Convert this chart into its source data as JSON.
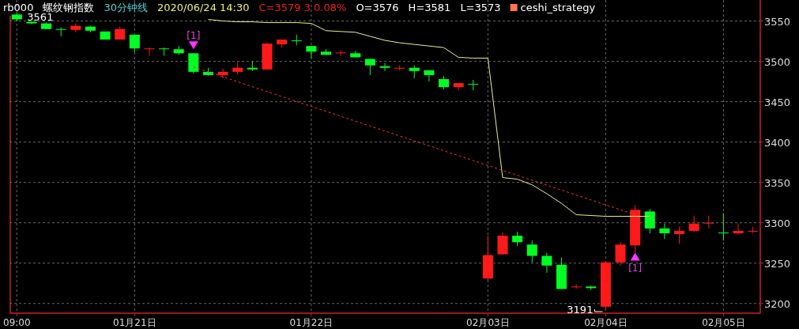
{
  "chart_data": {
    "type": "candlestick",
    "title": "rb000",
    "subtitle": "螺纹钢指数",
    "categories": [
      "09:00",
      null,
      null,
      null,
      null,
      null,
      null,
      null,
      "01月21日",
      null,
      null,
      null,
      null,
      null,
      null,
      null,
      null,
      null,
      null,
      null,
      "01月22日",
      null,
      null,
      null,
      null,
      null,
      null,
      null,
      null,
      null,
      null,
      null,
      "02月03日",
      null,
      null,
      null,
      null,
      null,
      null,
      null,
      "02月04日",
      null,
      null,
      null,
      null,
      null,
      null,
      null,
      "02月05日",
      null,
      null
    ],
    "ohlc": [
      [
        3558,
        3561,
        3550,
        3552
      ],
      [
        3549,
        3550,
        3546,
        3547
      ],
      [
        3547,
        3548,
        3540,
        3540
      ],
      [
        3540,
        3542,
        3531,
        3540
      ],
      [
        3539,
        3547,
        3536,
        3544
      ],
      [
        3543,
        3544,
        3536,
        3538
      ],
      [
        3537,
        3537,
        3527,
        3527
      ],
      [
        3527,
        3543,
        3527,
        3540
      ],
      [
        3533,
        3533,
        3511,
        3516
      ],
      [
        3515,
        3517,
        3507,
        3516
      ],
      [
        3516,
        3517,
        3507,
        3516
      ],
      [
        3515,
        3519,
        3508,
        3510
      ],
      [
        3510,
        3510,
        3485,
        3487
      ],
      [
        3487,
        3492,
        3482,
        3483
      ],
      [
        3483,
        3491,
        3479,
        3487
      ],
      [
        3487,
        3499,
        3484,
        3492
      ],
      [
        3492,
        3500,
        3488,
        3490
      ],
      [
        3490,
        3523,
        3490,
        3522
      ],
      [
        3521,
        3527,
        3517,
        3527
      ],
      [
        3526,
        3533,
        3520,
        3525
      ],
      [
        3519,
        3519,
        3504,
        3512
      ],
      [
        3512,
        3515,
        3508,
        3508
      ],
      [
        3510,
        3514,
        3507,
        3511
      ],
      [
        3510,
        3513,
        3505,
        3505
      ],
      [
        3503,
        3503,
        3483,
        3495
      ],
      [
        3494,
        3498,
        3488,
        3492
      ],
      [
        3491,
        3495,
        3489,
        3492
      ],
      [
        3492,
        3495,
        3479,
        3488
      ],
      [
        3489,
        3489,
        3475,
        3483
      ],
      [
        3478,
        3482,
        3465,
        3468
      ],
      [
        3468,
        3473,
        3464,
        3473
      ],
      [
        3472,
        3477,
        3464,
        3472
      ],
      [
        3231,
        3284,
        3229,
        3260
      ],
      [
        3261,
        3288,
        3260,
        3284
      ],
      [
        3284,
        3289,
        3271,
        3276
      ],
      [
        3273,
        3278,
        3251,
        3259
      ],
      [
        3259,
        3263,
        3238,
        3247
      ],
      [
        3248,
        3257,
        3218,
        3218
      ],
      [
        3220,
        3224,
        3218,
        3221
      ],
      [
        3221,
        3222,
        3217,
        3219
      ],
      [
        3196,
        3253,
        3191,
        3251
      ],
      [
        3251,
        3276,
        3247,
        3273
      ],
      [
        3272,
        3322,
        3263,
        3316
      ],
      [
        3314,
        3317,
        3287,
        3293
      ],
      [
        3293,
        3299,
        3280,
        3287
      ],
      [
        3286,
        3295,
        3274,
        3290
      ],
      [
        3290,
        3309,
        3289,
        3299
      ],
      [
        3299,
        3309,
        3293,
        3300
      ],
      [
        3288,
        3312,
        3278,
        3288
      ],
      [
        3287,
        3299,
        3285,
        3290
      ],
      [
        3289,
        3295,
        3287,
        3290
      ]
    ],
    "colors": [
      "#00ff22",
      "#00ff22",
      "#00ff22",
      "#00ff22",
      "#ff1a1a",
      "#00ff22",
      "#00ff22",
      "#ff1a1a",
      "#00ff22",
      "#ff1a1a",
      "#00ff22",
      "#00ff22",
      "#00ff22",
      "#00ff22",
      "#ff1a1a",
      "#ff1a1a",
      "#00ff22",
      "#ff1a1a",
      "#ff1a1a",
      "#00ff22",
      "#00ff22",
      "#00ff22",
      "#ff1a1a",
      "#00ff22",
      "#00ff22",
      "#00ff22",
      "#ff1a1a",
      "#00ff22",
      "#00ff22",
      "#00ff22",
      "#ff1a1a",
      "#00ff22",
      "#ff1a1a",
      "#ff1a1a",
      "#00ff22",
      "#00ff22",
      "#00ff22",
      "#00ff22",
      "#ff1a1a",
      "#00ff22",
      "#ff1a1a",
      "#ff1a1a",
      "#ff1a1a",
      "#00ff22",
      "#00ff22",
      "#ff1a1a",
      "#ff1a1a",
      "#ff1a1a",
      "#00ff22",
      "#ff1a1a",
      "#ff1a1a"
    ],
    "series": [
      {
        "type": "line",
        "color": "#eeee88",
        "line_style": "solid",
        "values": [
          null,
          null,
          null,
          null,
          null,
          null,
          null,
          null,
          null,
          null,
          null,
          null,
          null,
          3552,
          3550,
          3549,
          3549,
          3548,
          3548,
          3548,
          3547,
          3538,
          3537,
          3536,
          3531,
          3526,
          3523,
          3521,
          3519,
          3517,
          3505,
          3504,
          3504,
          3356,
          3354,
          3347,
          3336,
          3324,
          3310,
          3309,
          3308,
          3308,
          3308,
          3308,
          null,
          null,
          null,
          null,
          null,
          null,
          null
        ]
      },
      {
        "type": "line",
        "color": "#ff3030",
        "line_style": "dashed",
        "values": [
          null,
          null,
          null,
          null,
          null,
          null,
          null,
          null,
          null,
          null,
          null,
          null,
          3493,
          null,
          null,
          null,
          null,
          null,
          null,
          null,
          null,
          null,
          null,
          null,
          null,
          null,
          null,
          null,
          null,
          null,
          null,
          null,
          null,
          null,
          null,
          null,
          null,
          null,
          null,
          null,
          null,
          null,
          3310,
          null,
          null,
          null,
          null,
          null,
          null,
          null,
          null
        ]
      },
      {
        "type": "scatter",
        "color": "#ff33ff",
        "marker": "triangle",
        "values": [
          null,
          null,
          null,
          null,
          null,
          null,
          null,
          null,
          null,
          null,
          null,
          null,
          3520,
          null,
          null,
          null,
          null,
          null,
          null,
          null,
          null,
          null,
          null,
          null,
          null,
          null,
          null,
          null,
          null,
          null,
          null,
          null,
          null,
          null,
          null,
          null,
          null,
          null,
          null,
          null,
          null,
          null,
          3258,
          null,
          null,
          null,
          null,
          null,
          null,
          null,
          null
        ]
      }
    ],
    "ylim": [
      3188,
      3576
    ],
    "yticks": [
      3200,
      3250,
      3300,
      3350,
      3400,
      3450,
      3500,
      3550
    ],
    "grid": true,
    "annotations": [
      "30分钟线",
      "2020/06/24 14:30",
      "C=3579  3  0.08%",
      "O=3576",
      "H=3581",
      "L=3573",
      "ceshi_strategy",
      "[1]",
      "[1]",
      {
        "text": "3561",
        "x": "09:00",
        "y": 3561
      },
      {
        "text": "3191",
        "x": "02月04日",
        "y": 3191
      }
    ]
  }
}
